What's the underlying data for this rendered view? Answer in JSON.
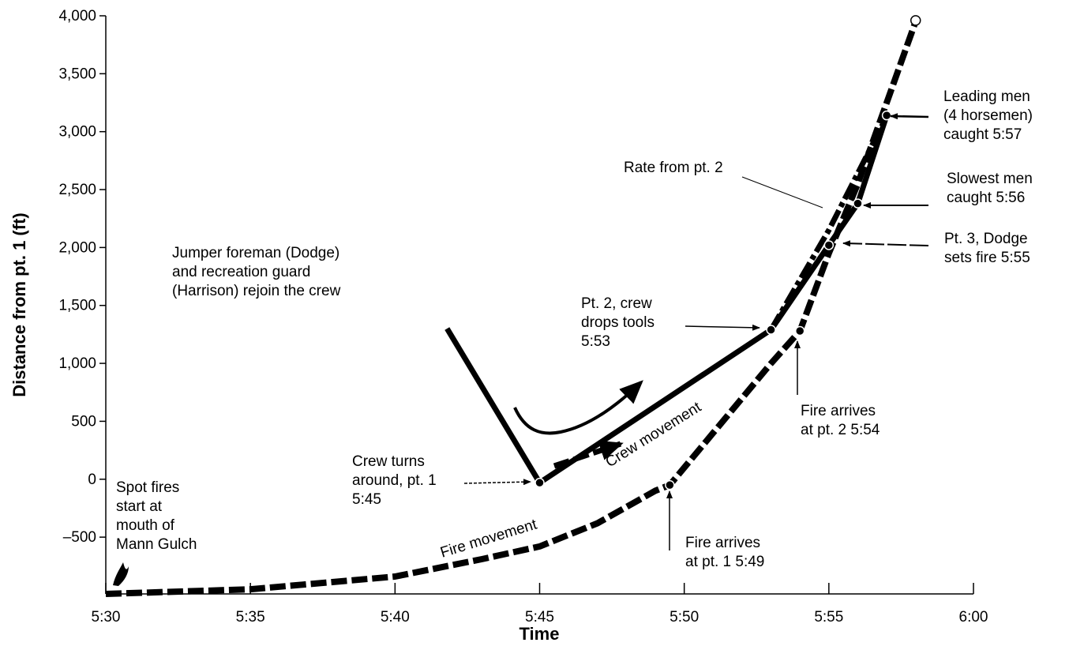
{
  "chart_data": {
    "type": "line",
    "xlabel": "Time",
    "ylabel": "Distance from pt. 1 (ft)",
    "x_ticks": [
      "5:30",
      "5:35",
      "5:40",
      "5:45",
      "5:50",
      "5:55",
      "6:00"
    ],
    "y_ticks": [
      4000,
      3500,
      3000,
      2500,
      2000,
      1500,
      1000,
      500,
      0,
      -500
    ],
    "y_tick_labels": [
      "4,000",
      "3,500",
      "3,000",
      "2,500",
      "2,000",
      "1,500",
      "1,000",
      "500",
      "0",
      "–500"
    ],
    "xlim_minutes_after_530": [
      0,
      30
    ],
    "ylim": [
      -990,
      4000
    ],
    "series": [
      {
        "key": "fire",
        "name": "Fire movement",
        "style": "dashed",
        "points": [
          {
            "x": "5:30",
            "y": -990
          },
          {
            "x": "5:35",
            "y": -950
          },
          {
            "x": "5:40",
            "y": -840
          },
          {
            "x": "5:43",
            "y": -690
          },
          {
            "x": "5:45",
            "y": -580
          },
          {
            "x": "5:47",
            "y": -380
          },
          {
            "x": "5:49",
            "y": -100
          },
          {
            "x": "5:49.5",
            "y": -50
          },
          {
            "x": "5:51",
            "y": 400
          },
          {
            "x": "5:53",
            "y": 1000
          },
          {
            "x": "5:54",
            "y": 1280
          },
          {
            "x": "5:55",
            "y": 1950
          },
          {
            "x": "5:56",
            "y": 2550
          },
          {
            "x": "5:57",
            "y": 3250
          },
          {
            "x": "5:58",
            "y": 3950
          }
        ]
      },
      {
        "key": "crew",
        "name": "Crew movement",
        "style": "solid",
        "points": [
          {
            "x": "5:45",
            "y": -30
          },
          {
            "x": "5:53",
            "y": 1290
          },
          {
            "x": "5:55",
            "y": 2020
          },
          {
            "x": "5:56",
            "y": 2380
          },
          {
            "x": "5:57",
            "y": 3140
          }
        ]
      },
      {
        "key": "rate",
        "name": "Rate from pt. 2",
        "style": "dash-dot",
        "points": [
          {
            "x": "5:53",
            "y": 1290
          },
          {
            "x": "5:55",
            "y": 2150
          },
          {
            "x": "5:57",
            "y": 3130
          }
        ]
      }
    ],
    "markers": [
      {
        "x": "5:45",
        "y": -30
      },
      {
        "x": "5:49.5",
        "y": -50
      },
      {
        "x": "5:53",
        "y": 1290
      },
      {
        "x": "5:54",
        "y": 1280
      },
      {
        "x": "5:55",
        "y": 2020
      },
      {
        "x": "5:56",
        "y": 2380
      },
      {
        "x": "5:57",
        "y": 3140
      }
    ],
    "open_marker": {
      "x": "5:58",
      "y": 3960
    },
    "approach_line": [
      {
        "x": "5:41.8",
        "y": 1300
      },
      {
        "x": "5:45",
        "y": -30
      }
    ],
    "annotations": {
      "spot_fires": [
        "Spot fires",
        "start at",
        "mouth of",
        "Mann Gulch"
      ],
      "jumper": [
        "Jumper foreman (Dodge)",
        "and recreation guard",
        "(Harrison) rejoin the crew"
      ],
      "crew_turns": [
        "Crew turns",
        "around, pt. 1",
        "5:45"
      ],
      "pt2_drops": [
        "Pt. 2, crew",
        "drops tools",
        "5:53"
      ],
      "rate_label": "Rate from pt. 2",
      "leading_men": [
        "Leading men",
        "(4 horsemen)",
        "caught 5:57"
      ],
      "slowest_men": [
        "Slowest men",
        "caught 5:56"
      ],
      "pt3_dodge": [
        "Pt. 3, Dodge",
        "sets fire 5:55"
      ],
      "fire_pt1": [
        "Fire arrives",
        "at pt. 1  5:49"
      ],
      "fire_pt2": [
        "Fire arrives",
        "at pt. 2  5:54"
      ],
      "crew_movement": "Crew movement",
      "fire_movement": "Fire movement"
    }
  }
}
